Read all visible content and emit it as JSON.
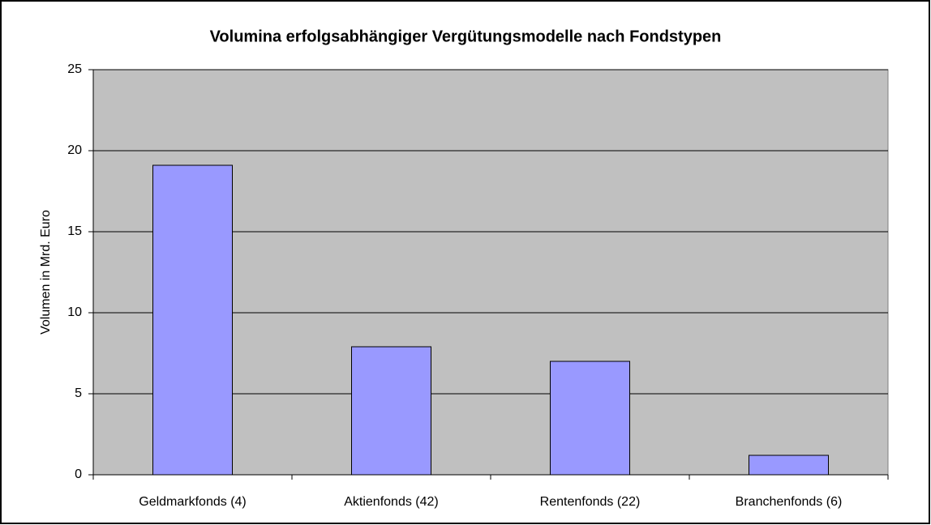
{
  "chart_data": {
    "type": "bar",
    "title": "Volumina erfolgsabhängiger Vergütungsmodelle nach Fondstypen",
    "y_label": "Volumen in Mrd. Euro",
    "categories": [
      "Geldmarkfonds (4)",
      "Aktienfonds (42)",
      "Rentenfonds (22)",
      "Branchenfonds (6)"
    ],
    "values": [
      19.1,
      7.9,
      7.0,
      1.2
    ],
    "color": "#9999ff",
    "ylim": [
      0,
      25
    ],
    "yticks": [
      0,
      5,
      10,
      15,
      20,
      25
    ],
    "grid": true
  }
}
